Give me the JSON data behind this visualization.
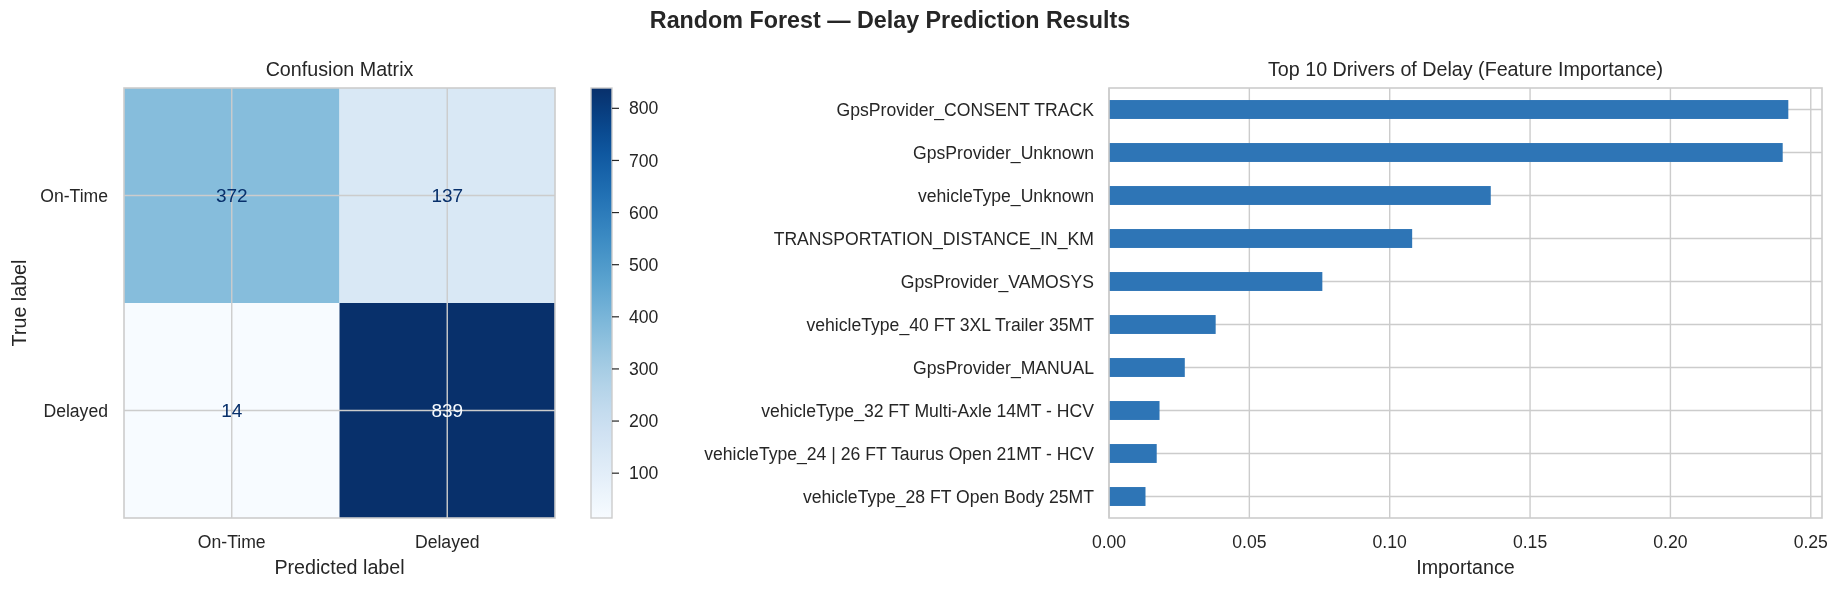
{
  "chart_data": [
    {
      "type": "heatmap",
      "title": "Confusion Matrix",
      "xlabel": "Predicted label",
      "ylabel": "True label",
      "annotations": [
        "Random Forest — Delay Prediction Results"
      ],
      "categories": [
        "On-Time",
        "Delayed"
      ],
      "y_categories": [
        "On-Time",
        "Delayed"
      ],
      "cells": [
        [
          372,
          137
        ],
        [
          14,
          839
        ]
      ],
      "clim": [
        14,
        839
      ],
      "cticks": [
        100,
        200,
        300,
        400,
        500,
        600,
        700,
        800
      ],
      "data_labels": true,
      "grid": true
    },
    {
      "type": "bar",
      "orientation": "horizontal",
      "title": "Top 10 Drivers of Delay (Feature Importance)",
      "xlabel": "Importance",
      "categories": [
        "GpsProvider_CONSENT TRACK",
        "GpsProvider_Unknown",
        "vehicleType_Unknown",
        "TRANSPORTATION_DISTANCE_IN_KM",
        "GpsProvider_VAMOSYS",
        "vehicleType_40 FT 3XL Trailer 35MT",
        "GpsProvider_MANUAL",
        "vehicleType_32 FT Multi-Axle 14MT - HCV",
        "vehicleType_24 | 26 FT Taurus Open 21MT - HCV",
        "vehicleType_28 FT Open Body 25MT"
      ],
      "values": [
        0.242,
        0.24,
        0.136,
        0.108,
        0.076,
        0.038,
        0.027,
        0.018,
        0.017,
        0.013
      ],
      "color": "#2e75b6",
      "xlim": [
        0,
        0.254
      ],
      "xticks": [
        {
          "value": 0,
          "label": "0.00"
        },
        {
          "value": 0.05,
          "label": "0.05"
        },
        {
          "value": 0.1,
          "label": "0.10"
        },
        {
          "value": 0.15,
          "label": "0.15"
        },
        {
          "value": 0.2,
          "label": "0.20"
        },
        {
          "value": 0.25,
          "label": "0.25"
        }
      ],
      "grid": true
    }
  ]
}
